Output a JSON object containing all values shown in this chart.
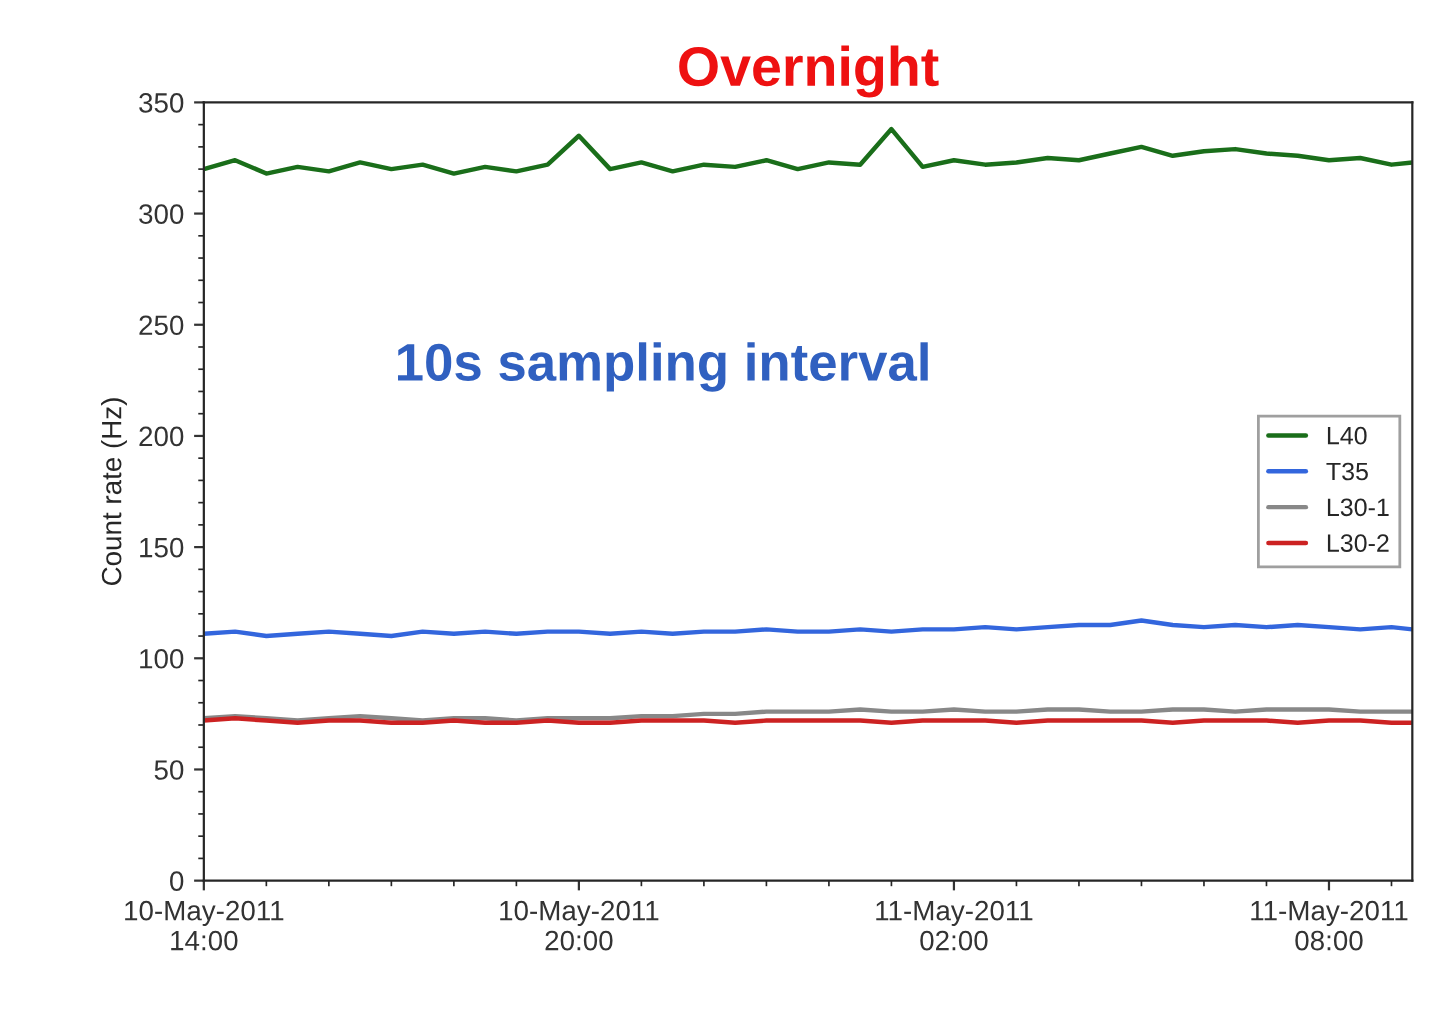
{
  "chart_data": {
    "type": "line",
    "title": "Overnight",
    "ylabel": "Count rate (Hz)",
    "annotations": [
      "10s sampling interval"
    ],
    "x": [
      "2011-05-10T14:00",
      "2011-05-10T14:30",
      "2011-05-10T15:00",
      "2011-05-10T15:30",
      "2011-05-10T16:00",
      "2011-05-10T16:30",
      "2011-05-10T17:00",
      "2011-05-10T17:30",
      "2011-05-10T18:00",
      "2011-05-10T18:30",
      "2011-05-10T19:00",
      "2011-05-10T19:30",
      "2011-05-10T20:00",
      "2011-05-10T20:30",
      "2011-05-10T21:00",
      "2011-05-10T21:30",
      "2011-05-10T22:00",
      "2011-05-10T22:30",
      "2011-05-10T23:00",
      "2011-05-10T23:30",
      "2011-05-11T00:00",
      "2011-05-11T00:30",
      "2011-05-11T01:00",
      "2011-05-11T01:30",
      "2011-05-11T02:00",
      "2011-05-11T02:30",
      "2011-05-11T03:00",
      "2011-05-11T03:30",
      "2011-05-11T04:00",
      "2011-05-11T04:30",
      "2011-05-11T05:00",
      "2011-05-11T05:30",
      "2011-05-11T06:00",
      "2011-05-11T06:30",
      "2011-05-11T07:00",
      "2011-05-11T07:30",
      "2011-05-11T08:00",
      "2011-05-11T08:30",
      "2011-05-11T09:00",
      "2011-05-11T09:20"
    ],
    "series": [
      {
        "name": "L40",
        "color": "#1a6e1a",
        "values": [
          320,
          324,
          318,
          321,
          319,
          323,
          320,
          322,
          318,
          321,
          319,
          322,
          335,
          320,
          323,
          319,
          322,
          321,
          324,
          320,
          323,
          322,
          338,
          321,
          324,
          322,
          323,
          325,
          324,
          327,
          330,
          326,
          328,
          329,
          327,
          326,
          324,
          325,
          322,
          323
        ]
      },
      {
        "name": "T35",
        "color": "#3366dd",
        "values": [
          111,
          112,
          110,
          111,
          112,
          111,
          110,
          112,
          111,
          112,
          111,
          112,
          112,
          111,
          112,
          111,
          112,
          112,
          113,
          112,
          112,
          113,
          112,
          113,
          113,
          114,
          113,
          114,
          115,
          115,
          117,
          115,
          114,
          115,
          114,
          115,
          114,
          113,
          114,
          113
        ]
      },
      {
        "name": "L30-1",
        "color": "#888888",
        "values": [
          73,
          74,
          73,
          72,
          73,
          74,
          73,
          72,
          73,
          73,
          72,
          73,
          73,
          73,
          74,
          74,
          75,
          75,
          76,
          76,
          76,
          77,
          76,
          76,
          77,
          76,
          76,
          77,
          77,
          76,
          76,
          77,
          77,
          76,
          77,
          77,
          77,
          76,
          76,
          76
        ]
      },
      {
        "name": "L30-2",
        "color": "#cc2222",
        "values": [
          72,
          73,
          72,
          71,
          72,
          72,
          71,
          71,
          72,
          71,
          71,
          72,
          71,
          71,
          72,
          72,
          72,
          71,
          72,
          72,
          72,
          72,
          71,
          72,
          72,
          72,
          71,
          72,
          72,
          72,
          72,
          71,
          72,
          72,
          72,
          71,
          72,
          72,
          71,
          71
        ]
      }
    ],
    "ylim": [
      0,
      350
    ],
    "yticks": [
      0,
      50,
      100,
      150,
      200,
      250,
      300,
      350
    ],
    "xlim": [
      "2011-05-10T14:00",
      "2011-05-11T09:20"
    ],
    "xticks": [
      {
        "value": "2011-05-10T14:00",
        "label": "10-May-2011\n14:00"
      },
      {
        "value": "2011-05-10T20:00",
        "label": "10-May-2011\n20:00"
      },
      {
        "value": "2011-05-11T02:00",
        "label": "11-May-2011\n02:00"
      },
      {
        "value": "2011-05-11T08:00",
        "label": "11-May-2011\n08:00"
      }
    ],
    "legend": "right",
    "grid": false,
    "marker": "none",
    "line_style": "solid"
  }
}
